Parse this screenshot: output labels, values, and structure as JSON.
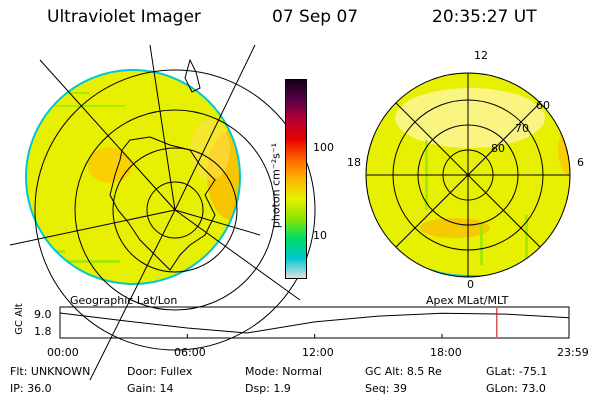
{
  "header": {
    "title": "Ultraviolet Imager",
    "date": "07 Sep 07",
    "time": "20:35:27 UT"
  },
  "left_panel": {
    "label": "Geographic Lat/Lon"
  },
  "right_panel": {
    "label": "Apex  MLat/MLT",
    "mlt_labels": [
      "12",
      "18",
      "6",
      "0"
    ],
    "lat_labels": [
      "60",
      "70",
      "80"
    ]
  },
  "colorbar": {
    "unit_label": "photon cm⁻²s⁻¹",
    "ticks": [
      "100",
      "10"
    ],
    "colors": [
      "#e0e0e0",
      "#00c8d2",
      "#00dc64",
      "#8ce600",
      "#e6f000",
      "#ffb400",
      "#ff6400",
      "#e60000",
      "#b40032",
      "#5a004b",
      "#140014"
    ]
  },
  "altitude_plot": {
    "ylabel": "GC Alt",
    "yticks": [
      "9.0",
      "1.8"
    ],
    "xticks": [
      "00:00",
      "06:00",
      "12:00",
      "18:00",
      "23:59"
    ],
    "marker_time": "20:35",
    "marker_color": "#cc0000"
  },
  "info": {
    "row1": [
      {
        "label": "Flt:",
        "value": "UNKNOWN"
      },
      {
        "label": "Door:",
        "value": "Fullex"
      },
      {
        "label": "Mode:",
        "value": "Normal"
      },
      {
        "label": "GC Alt:",
        "value": "8.5 Re"
      },
      {
        "label": "GLat:",
        "value": "-75.1"
      }
    ],
    "row2": [
      {
        "label": "IP:",
        "value": "36.0"
      },
      {
        "label": "Gain:",
        "value": "14"
      },
      {
        "label": "Dsp:",
        "value": "1.9"
      },
      {
        "label": "Seq:",
        "value": "39"
      },
      {
        "label": "GLon:",
        "value": "73.0"
      }
    ]
  },
  "chart_data": {
    "type": "line",
    "title": "Ultraviolet Imager",
    "xlabel": "",
    "ylabel": "GC Alt",
    "x": [
      "00:00",
      "03:00",
      "06:00",
      "08:48",
      "12:00",
      "15:00",
      "18:00",
      "21:00",
      "23:59"
    ],
    "values": [
      9.0,
      6.2,
      3.6,
      1.8,
      5.8,
      7.9,
      8.9,
      8.6,
      7.3
    ],
    "ylim": [
      1.8,
      9.0
    ],
    "marker_x": "20:35"
  }
}
